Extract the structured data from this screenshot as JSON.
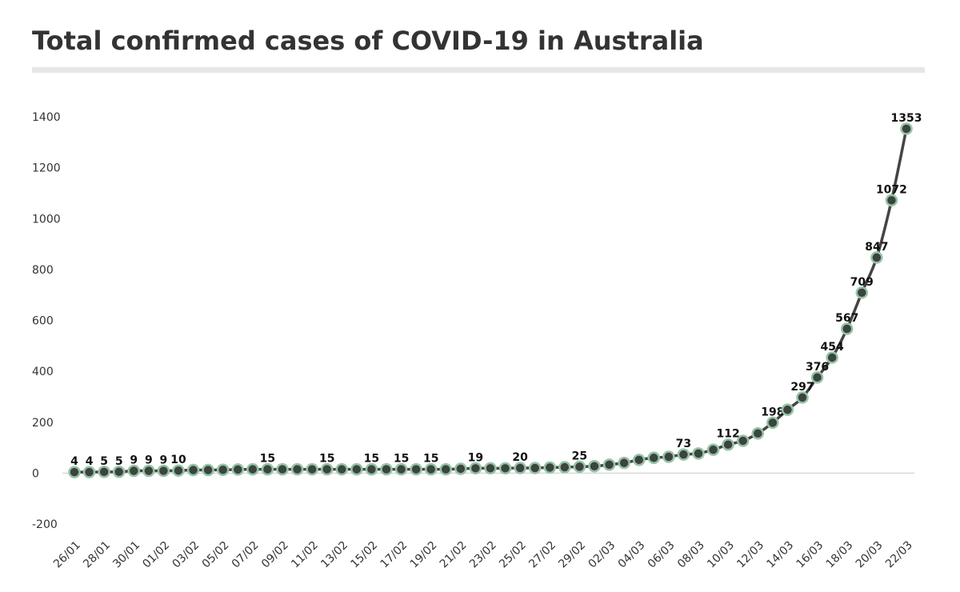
{
  "chart_data": {
    "type": "line",
    "title": "Total confirmed cases of COVID-19 in Australia",
    "categories": [
      "26/01",
      null,
      "28/01",
      null,
      "30/01",
      null,
      "01/02",
      null,
      "03/02",
      null,
      "05/02",
      null,
      "07/02",
      null,
      "09/02",
      null,
      "11/02",
      null,
      "13/02",
      null,
      "15/02",
      null,
      "17/02",
      null,
      "19/02",
      null,
      "21/02",
      null,
      "23/02",
      null,
      "25/02",
      null,
      "27/02",
      null,
      "29/02",
      null,
      "02/03",
      null,
      "04/03",
      null,
      "06/03",
      null,
      "08/03",
      null,
      "10/03",
      null,
      "12/03",
      null,
      "14/03",
      null,
      "16/03",
      null,
      "18/03",
      null,
      "20/03",
      null,
      "22/03"
    ],
    "series": [
      {
        "name": "Total confirmed cases",
        "color": "#444444",
        "marker_color": "#3d433f",
        "marker_edge": "#95c4a6",
        "values": [
          4,
          4,
          5,
          5,
          9,
          9,
          9,
          10,
          12,
          12,
          13,
          14,
          15,
          15,
          15,
          15,
          15,
          15,
          15,
          15,
          15,
          15,
          15,
          15,
          15,
          15,
          17,
          19,
          19,
          19,
          20,
          20,
          22,
          23,
          25,
          27,
          33,
          40,
          52,
          60,
          64,
          73,
          77,
          92,
          112,
          127,
          156,
          198,
          249,
          297,
          376,
          454,
          567,
          709,
          847,
          1072,
          1353
        ],
        "value_labels": [
          "4",
          "4",
          "5",
          "5",
          "9",
          "9",
          "9",
          "10",
          null,
          null,
          null,
          null,
          null,
          "15",
          null,
          null,
          null,
          "15",
          null,
          null,
          "15",
          null,
          "15",
          null,
          "15",
          null,
          null,
          "19",
          null,
          null,
          "20",
          null,
          null,
          null,
          "25",
          null,
          null,
          null,
          null,
          null,
          null,
          "73",
          null,
          null,
          "112",
          null,
          null,
          "198",
          null,
          "297",
          "376",
          "454",
          "567",
          "709",
          "847",
          "1072",
          "1353"
        ]
      }
    ],
    "ylim": [
      -200,
      1400
    ],
    "yticks": [
      -200,
      0,
      200,
      400,
      600,
      800,
      1000,
      1200,
      1400
    ]
  }
}
